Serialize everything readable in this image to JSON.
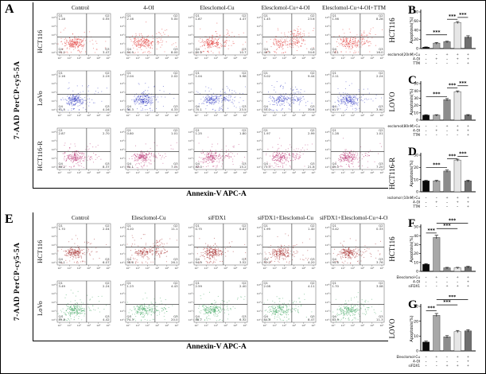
{
  "figure": {
    "background": "#ffffff"
  },
  "quadrant_labels": {
    "top_left": "Q1",
    "top_right": "Q2",
    "bottom_left": "Q4",
    "bottom_right": "Q3"
  },
  "flow_panels": [
    {
      "letter": "A",
      "y_label": "7-AAD PerCP-cy5-5A",
      "x_label": "Annexin-V APC-A",
      "columns": [
        "Control",
        "4-OI",
        "Elesclomol-Cu",
        "Elesclomol-Cu+4-OI",
        "Elesclomol-Cu+4-OI+TTM"
      ],
      "rows": [
        {
          "label": "HCT116",
          "color": "#df2420",
          "plots": [
            {
              "q1": "1.28",
              "q2": "0.55",
              "q3": "3.47",
              "q4": "95.2"
            },
            {
              "q1": "2.16",
              "q2": "5.00",
              "q3": "8.00",
              "q4": "84.9"
            },
            {
              "q1": "1.87",
              "q2": "4.47",
              "q3": "10.7",
              "q4": "80.9"
            },
            {
              "q1": "1.45",
              "q2": "23.6",
              "q3": "34.6",
              "q4": "40.5"
            },
            {
              "q1": "1.56",
              "q2": "8.28",
              "q3": "16.0",
              "q4": "74.1"
            }
          ]
        },
        {
          "label": "LoVo",
          "color": "#2b35c0",
          "plots": [
            {
              "q1": "2.16",
              "q2": "2.19",
              "q3": "4.16",
              "q4": "91.5"
            },
            {
              "q1": "2.04",
              "q2": "2.02",
              "q3": "4.33",
              "q4": "90.3"
            },
            {
              "q1": "1.04",
              "q2": "5.98",
              "q3": "23.5",
              "q4": "70.1"
            },
            {
              "q1": "5.02",
              "q2": "9.44",
              "q3": "30.6",
              "q4": "55.0"
            },
            {
              "q1": "2.11",
              "q2": "2.24",
              "q3": "3.90",
              "q4": "91.7"
            }
          ]
        },
        {
          "label": "HCT116-R",
          "color": "#b72a6e",
          "plots": [
            {
              "q1": "2.87",
              "q2": "2.70",
              "q3": "8.37",
              "q4": "86.2"
            },
            {
              "q1": "0.80",
              "q2": "1.01",
              "q3": "7.01",
              "q4": "90.1"
            },
            {
              "q1": "1.25",
              "q2": "1.80",
              "q3": "15.2",
              "q4": "82.0"
            },
            {
              "q1": "1.97",
              "q2": "2.99",
              "q3": "21.8",
              "q4": "73.3"
            },
            {
              "q1": "1.28",
              "q2": "1.01",
              "q3": "7.20",
              "q4": "89.0"
            }
          ]
        }
      ]
    },
    {
      "letter": "E",
      "y_label": "7-AAD PerCP-cy5-5A",
      "x_label": "Annexin-V APC-A",
      "columns": [
        "Control",
        "Elesclomol-Cu",
        "siFDX1",
        "siFDX1+Elesclomol-Cu",
        "siFDX1+Elesclomol-Cu+4-OI"
      ],
      "rows": [
        {
          "label": "HCT116",
          "color": "#9e1d1d",
          "plots": [
            {
              "q1": "1.70",
              "q2": "2.04",
              "q3": "6.07",
              "q4": "90.1"
            },
            {
              "q1": "4.20",
              "q2": "11.1",
              "q3": "26.1",
              "q4": "58.6"
            },
            {
              "q1": "0.75",
              "q2": "0.87",
              "q3": "3.52",
              "q4": "94.9"
            },
            {
              "q1": "1.99",
              "q2": "1.40",
              "q3": "4.20",
              "q4": "92.2"
            },
            {
              "q1": "0.42",
              "q2": "0.33",
              "q3": "3.76",
              "q4": "94.6"
            }
          ]
        },
        {
          "label": "LoVo",
          "color": "#35a058",
          "plots": [
            {
              "q1": "3.49",
              "q2": "2.24",
              "q3": "4.42",
              "q4": "89.8"
            },
            {
              "q1": "1.23",
              "q2": "4.43",
              "q3": "20.0",
              "q4": "74.3"
            },
            {
              "q1": "2.59",
              "q2": "2.40",
              "q3": "6.32",
              "q4": "88.7"
            },
            {
              "q1": "2.08",
              "q2": "4.11",
              "q3": "8.47",
              "q4": "84.8"
            },
            {
              "q1": "1.70",
              "q2": "3.08",
              "q3": "11.3",
              "q4": "83.9"
            }
          ]
        }
      ]
    }
  ],
  "chart_data": [
    {
      "type": "bar",
      "letter": "B",
      "cell_line": "HCT116",
      "ylabel": "Apoptosis(%)",
      "ylim": [
        0,
        80
      ],
      "yticks": [
        0,
        20,
        40,
        60,
        80
      ],
      "categories": [
        "Control",
        "4-OI",
        "Elesclomol-Cu",
        "Elesclomol-Cu+4-OI",
        "Elesclomol-Cu+4-OI+TTM"
      ],
      "values": [
        3,
        12,
        15,
        57,
        25
      ],
      "errors": [
        0.6,
        1.2,
        1,
        2,
        3
      ],
      "sig": [
        {
          "from": 0,
          "to": 2,
          "v": 30,
          "label": "***"
        },
        {
          "from": 2,
          "to": 3,
          "v": 64,
          "label": "***"
        },
        {
          "from": 3,
          "to": 4,
          "v": 68,
          "label": "***"
        }
      ],
      "treatments": [
        {
          "name": "Elesclomol(20nM)-Cu",
          "signs": [
            "-",
            "-",
            "+",
            "+",
            "+"
          ]
        },
        {
          "name": "4-OI",
          "signs": [
            "-",
            "+",
            "-",
            "+",
            "+"
          ]
        },
        {
          "name": "TTM",
          "signs": [
            "-",
            "-",
            "-",
            "-",
            "+"
          ]
        }
      ]
    },
    {
      "type": "bar",
      "letter": "C",
      "cell_line": "LOVO",
      "ylabel": "Apoptosis(%)",
      "ylim": [
        0,
        50
      ],
      "yticks": [
        0,
        10,
        20,
        30,
        40,
        50
      ],
      "categories": [
        "Control",
        "4-OI",
        "Elesclomol-Cu",
        "Elesclomol-Cu+4-OI",
        "Elesclomol-Cu+4-OI+TTM"
      ],
      "values": [
        7,
        7,
        28,
        39,
        7
      ],
      "errors": [
        0.5,
        0.5,
        1.5,
        1,
        0.6
      ],
      "sig": [
        {
          "from": 0,
          "to": 2,
          "v": 32,
          "label": "***"
        },
        {
          "from": 2,
          "to": 3,
          "v": 44,
          "label": "***"
        },
        {
          "from": 3,
          "to": 4,
          "v": 47,
          "label": "***"
        }
      ],
      "treatments": [
        {
          "name": "Elesclomol(80nM)-Cu",
          "signs": [
            "-",
            "-",
            "+",
            "+",
            "+"
          ]
        },
        {
          "name": "4-OI",
          "signs": [
            "-",
            "+",
            "-",
            "+",
            "+"
          ]
        },
        {
          "name": "TTM",
          "signs": [
            "-",
            "-",
            "-",
            "-",
            "+"
          ]
        }
      ]
    },
    {
      "type": "bar",
      "letter": "D",
      "cell_line": "HCT116-R",
      "ylabel": "Apoptosis(%)",
      "ylim": [
        0,
        30
      ],
      "yticks": [
        0,
        10,
        20,
        30
      ],
      "categories": [
        "Control",
        "4-OI",
        "Elesclomol-Cu",
        "Elesclomol-Cu+4-OI",
        "Elesclomol-Cu+4-OI+TTM"
      ],
      "values": [
        9,
        9,
        17,
        26,
        9
      ],
      "errors": [
        0.4,
        0.4,
        0.8,
        0.7,
        0.5
      ],
      "sig": [
        {
          "from": 0,
          "to": 2,
          "v": 20,
          "label": "***"
        },
        {
          "from": 2,
          "to": 3,
          "v": 27,
          "label": "***"
        },
        {
          "from": 3,
          "to": 4,
          "v": 29,
          "label": "***"
        }
      ],
      "treatments": [
        {
          "name": "Elesclomol (10nM)-Cu",
          "signs": [
            "-",
            "-",
            "+",
            "+",
            "+"
          ]
        },
        {
          "name": "4-OI",
          "signs": [
            "-",
            "+",
            "-",
            "+",
            "+"
          ]
        },
        {
          "name": "TTM",
          "signs": [
            "-",
            "-",
            "-",
            "-",
            "+"
          ]
        }
      ]
    },
    {
      "type": "bar",
      "letter": "F",
      "cell_line": "HCT116",
      "ylabel": "Apoptosis(%)",
      "ylim": [
        0,
        50
      ],
      "yticks": [
        0,
        10,
        20,
        30,
        40,
        50
      ],
      "categories": [
        "Control",
        "Elesclomol-Cu",
        "siFDX1",
        "siFDX1+Elesclomol-Cu",
        "siFDX1+Elesclomol-Cu+4-OI"
      ],
      "values": [
        8,
        38,
        4,
        4,
        5
      ],
      "errors": [
        0.7,
        2.5,
        0.5,
        0.5,
        0.6
      ],
      "sig": [
        {
          "from": 0,
          "to": 1,
          "v": 43,
          "label": "***"
        },
        {
          "from": 1,
          "to": 3,
          "v": 48,
          "label": "***"
        },
        {
          "from": 1,
          "to": 4,
          "v": 54,
          "label": "***"
        }
      ],
      "treatments": [
        {
          "name": "Elesclomol-Cu",
          "signs": [
            "-",
            "+",
            "-",
            "+",
            "+"
          ]
        },
        {
          "name": "4-OI",
          "signs": [
            "-",
            "-",
            "-",
            "-",
            "+"
          ]
        },
        {
          "name": "siFDX1",
          "signs": [
            "-",
            "-",
            "+",
            "+",
            "+"
          ]
        }
      ]
    },
    {
      "type": "bar",
      "letter": "G",
      "cell_line": "LOVO",
      "ylabel": "Apoptosis(%)",
      "ylim": [
        0,
        30
      ],
      "yticks": [
        0,
        10,
        20,
        30
      ],
      "categories": [
        "Control",
        "Elesclomol-Cu",
        "siFDX1",
        "siFDX1+Elesclomol-Cu",
        "siFDX1+Elesclomol-Cu+4-OI"
      ],
      "values": [
        6,
        24,
        9.5,
        13,
        13.5
      ],
      "errors": [
        0.6,
        1.2,
        0.8,
        0.8,
        0.8
      ],
      "sig": [
        {
          "from": 0,
          "to": 1,
          "v": 27,
          "label": "***"
        },
        {
          "from": 1,
          "to": 3,
          "v": 31,
          "label": "***"
        },
        {
          "from": 1,
          "to": 4,
          "v": 34.5,
          "label": "***"
        }
      ],
      "treatments": [
        {
          "name": "Elesclomol-Cu",
          "signs": [
            "-",
            "+",
            "-",
            "+",
            "+"
          ]
        },
        {
          "name": "4-OI",
          "signs": [
            "-",
            "-",
            "-",
            "-",
            "+"
          ]
        },
        {
          "name": "siFDX1",
          "signs": [
            "-",
            "-",
            "+",
            "+",
            "+"
          ]
        }
      ]
    }
  ],
  "style": {
    "bar_colors": [
      "#0b0b0b",
      "#a8a8a8",
      "#8c8c8c",
      "#e6e6e6",
      "#6f6f6f"
    ],
    "axis_color": "#000000"
  }
}
